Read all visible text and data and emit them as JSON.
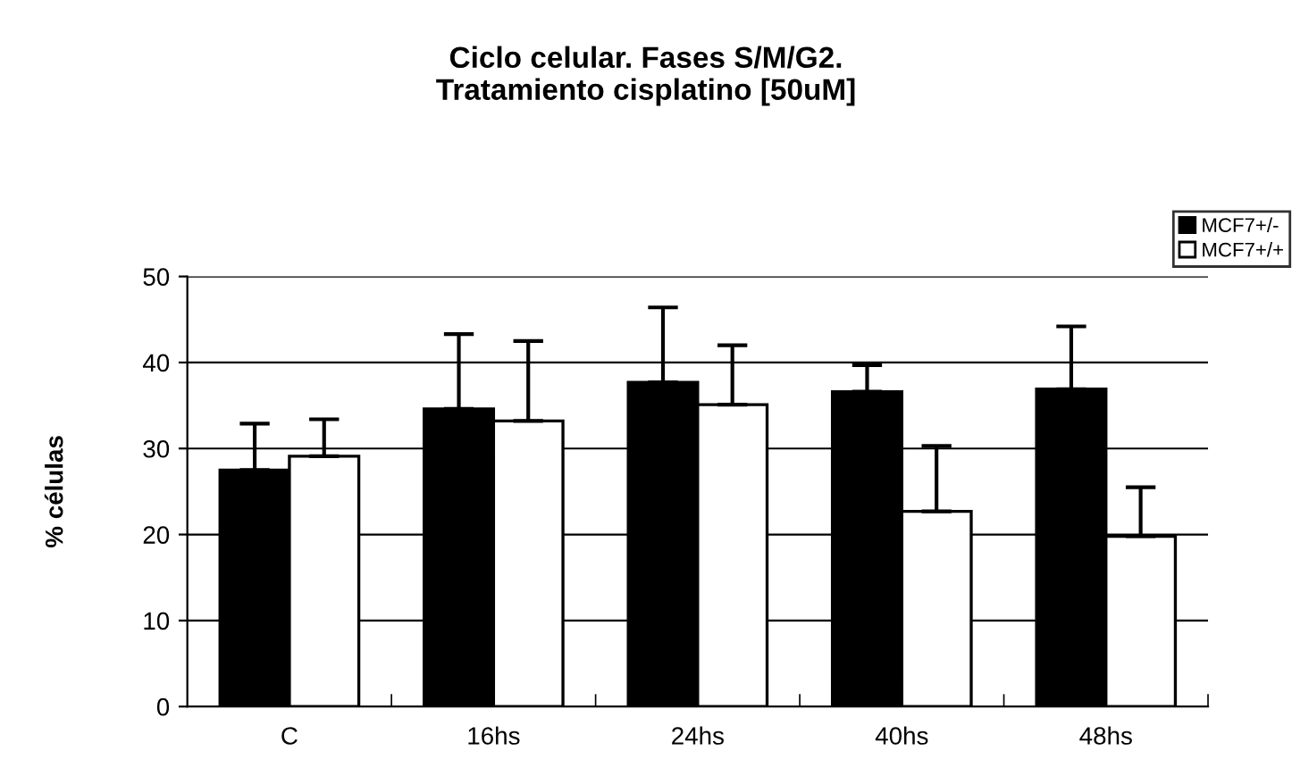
{
  "chart_data": {
    "type": "bar",
    "title": "Ciclo celular. Fases S/M/G2.\nTratamiento cisplatino [50uM]",
    "ylabel": "% células",
    "categories": [
      "C",
      "16hs",
      "24hs",
      "40hs",
      "48hs"
    ],
    "series": [
      {
        "name": "MCF7+/-",
        "color": "#000000",
        "values": [
          27.5,
          34.6,
          37.7,
          36.6,
          36.9
        ],
        "errors": [
          [
            27.5,
            32.9
          ],
          [
            34.6,
            43.3
          ],
          [
            37.7,
            46.4
          ],
          [
            36.6,
            39.7
          ],
          [
            36.9,
            44.2
          ]
        ]
      },
      {
        "name": "MCF7+/+",
        "color": "#ffffff",
        "values": [
          29.1,
          33.2,
          35.1,
          22.7,
          19.8
        ],
        "errors": [
          [
            29.1,
            33.4
          ],
          [
            33.2,
            42.5
          ],
          [
            35.1,
            42.0
          ],
          [
            22.7,
            30.3
          ],
          [
            19.8,
            25.5
          ]
        ]
      }
    ],
    "ylim": [
      0,
      50
    ],
    "yticks": [
      0,
      10,
      20,
      30,
      40,
      50
    ],
    "grid": "y",
    "legend": "top right"
  }
}
